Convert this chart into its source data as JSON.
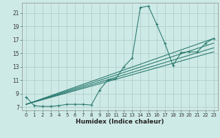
{
  "xlabel": "Humidex (Indice chaleur)",
  "bg_color": "#ceeae6",
  "grid_color": "#b0ceca",
  "line_color": "#2a7a70",
  "xlim": [
    -0.5,
    23.5
  ],
  "ylim": [
    6.5,
    22.5
  ],
  "yticks": [
    7,
    9,
    11,
    13,
    15,
    17,
    19,
    21
  ],
  "xticks": [
    0,
    1,
    2,
    3,
    4,
    5,
    6,
    7,
    8,
    9,
    10,
    11,
    12,
    13,
    14,
    15,
    16,
    17,
    18,
    19,
    20,
    21,
    22,
    23
  ],
  "main_series": {
    "x": [
      0,
      1,
      2,
      3,
      4,
      5,
      6,
      7,
      8,
      9,
      10,
      11,
      12,
      13,
      14,
      15,
      16,
      17,
      18,
      19,
      20,
      21,
      22,
      23
    ],
    "y": [
      8.5,
      7.2,
      7.1,
      7.1,
      7.2,
      7.4,
      7.4,
      7.4,
      7.3,
      9.5,
      11.0,
      11.2,
      13.0,
      14.3,
      21.8,
      22.0,
      19.3,
      16.5,
      13.2,
      15.1,
      15.2,
      15.2,
      16.5,
      17.2
    ]
  },
  "linear_series": [
    {
      "x0": 0,
      "y0": 7.4,
      "x1": 23,
      "y1": 17.2
    },
    {
      "x0": 0,
      "y0": 7.4,
      "x1": 23,
      "y1": 16.5
    },
    {
      "x0": 0,
      "y0": 7.4,
      "x1": 23,
      "y1": 15.8
    },
    {
      "x0": 0,
      "y0": 7.4,
      "x1": 23,
      "y1": 15.2
    }
  ]
}
